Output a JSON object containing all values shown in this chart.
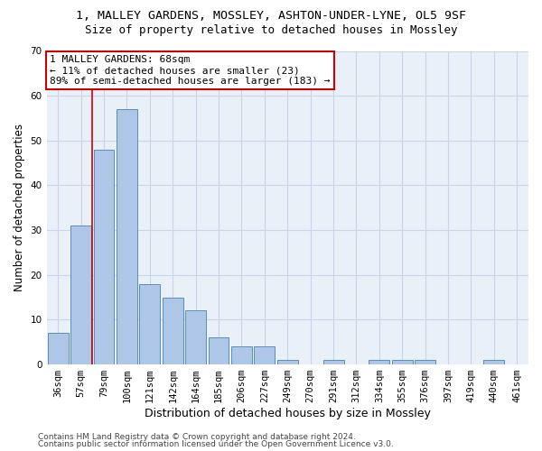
{
  "title1": "1, MALLEY GARDENS, MOSSLEY, ASHTON-UNDER-LYNE, OL5 9SF",
  "title2": "Size of property relative to detached houses in Mossley",
  "xlabel": "Distribution of detached houses by size in Mossley",
  "ylabel": "Number of detached properties",
  "categories": [
    "36sqm",
    "57sqm",
    "79sqm",
    "100sqm",
    "121sqm",
    "142sqm",
    "164sqm",
    "185sqm",
    "206sqm",
    "227sqm",
    "249sqm",
    "270sqm",
    "291sqm",
    "312sqm",
    "334sqm",
    "355sqm",
    "376sqm",
    "397sqm",
    "419sqm",
    "440sqm",
    "461sqm"
  ],
  "values": [
    7,
    31,
    48,
    57,
    18,
    15,
    12,
    6,
    4,
    4,
    1,
    0,
    1,
    0,
    1,
    1,
    1,
    0,
    0,
    1,
    0
  ],
  "bar_color": "#aec6e8",
  "bar_edge_color": "#5b8db8",
  "grid_color": "#c8d4e8",
  "background_color": "#eaf0f8",
  "annotation_line1": "1 MALLEY GARDENS: 68sqm",
  "annotation_line2": "← 11% of detached houses are smaller (23)",
  "annotation_line3": "89% of semi-detached houses are larger (183) →",
  "annotation_box_color": "#ffffff",
  "annotation_box_edge": "#cc0000",
  "vline_color": "#cc0000",
  "vline_x_index": 1.5,
  "ylim": [
    0,
    70
  ],
  "yticks": [
    0,
    10,
    20,
    30,
    40,
    50,
    60,
    70
  ],
  "footer1": "Contains HM Land Registry data © Crown copyright and database right 2024.",
  "footer2": "Contains public sector information licensed under the Open Government Licence v3.0.",
  "title1_fontsize": 9.5,
  "title2_fontsize": 9,
  "xlabel_fontsize": 9,
  "ylabel_fontsize": 8.5,
  "tick_fontsize": 7.5,
  "annotation_fontsize": 8,
  "footer_fontsize": 6.5
}
